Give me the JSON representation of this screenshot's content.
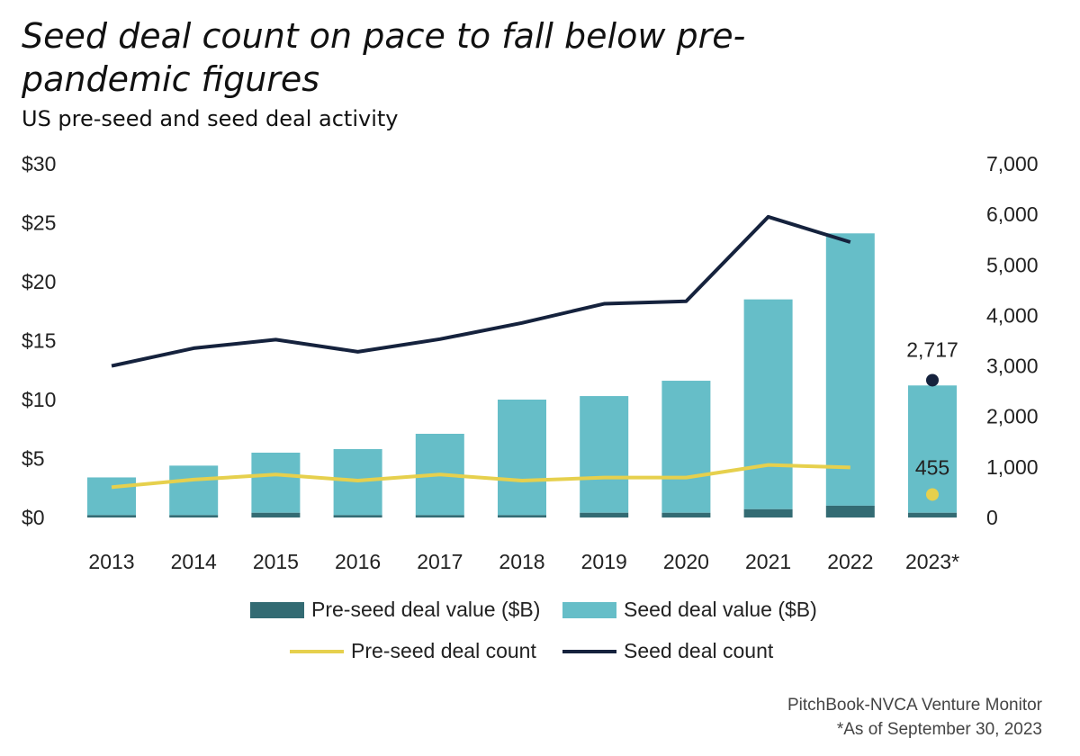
{
  "title": "Seed deal count on pace to fall below pre-pandemic figures",
  "subtitle": "US pre-seed and seed deal activity",
  "source": "PitchBook-NVCA Venture Monitor",
  "footnote": "*As of September 30, 2023",
  "colors": {
    "pre_seed_value": "#336b73",
    "seed_value": "#66bec8",
    "pre_seed_count": "#e6d04d",
    "seed_count": "#15223d"
  },
  "legend": {
    "pre_seed_value": "Pre-seed deal value ($B)",
    "seed_value": "Seed deal value ($B)",
    "pre_seed_count": "Pre-seed deal count",
    "seed_count": "Seed deal count"
  },
  "chart_data": {
    "type": "bar",
    "title": "Seed deal count on pace to fall below pre-pandemic figures",
    "subtitle": "US pre-seed and seed deal activity",
    "categories": [
      "2013",
      "2014",
      "2015",
      "2016",
      "2017",
      "2018",
      "2019",
      "2020",
      "2021",
      "2022",
      "2023*"
    ],
    "y_left": {
      "ticks": [
        "$0",
        "$5",
        "$10",
        "$15",
        "$20",
        "$25",
        "$30"
      ],
      "ylim": [
        0,
        30
      ],
      "unit": "$B"
    },
    "y_right": {
      "ticks": [
        "0",
        "1,000",
        "2,000",
        "3,000",
        "4,000",
        "5,000",
        "6,000",
        "7,000"
      ],
      "ylim": [
        0,
        7000
      ]
    },
    "bar_series": [
      {
        "name": "Pre-seed deal value ($B)",
        "stack": "value",
        "values": [
          0.2,
          0.2,
          0.4,
          0.2,
          0.2,
          0.2,
          0.4,
          0.4,
          0.7,
          1.0,
          0.4
        ]
      },
      {
        "name": "Seed deal value ($B)",
        "stack": "value",
        "values": [
          3.2,
          4.2,
          5.1,
          5.6,
          6.9,
          9.8,
          9.9,
          11.2,
          17.8,
          23.1,
          10.8
        ]
      }
    ],
    "line_series": [
      {
        "name": "Pre-seed deal count",
        "axis": "right",
        "values": [
          600,
          750,
          850,
          730,
          850,
          730,
          790,
          790,
          1040,
          990,
          null
        ],
        "point_2023": 455,
        "point_label": "455"
      },
      {
        "name": "Seed deal count",
        "axis": "right",
        "values": [
          3000,
          3350,
          3520,
          3280,
          3530,
          3850,
          4230,
          4280,
          5950,
          5450,
          null
        ],
        "point_2023": 2717,
        "point_label": "2,717"
      }
    ]
  }
}
